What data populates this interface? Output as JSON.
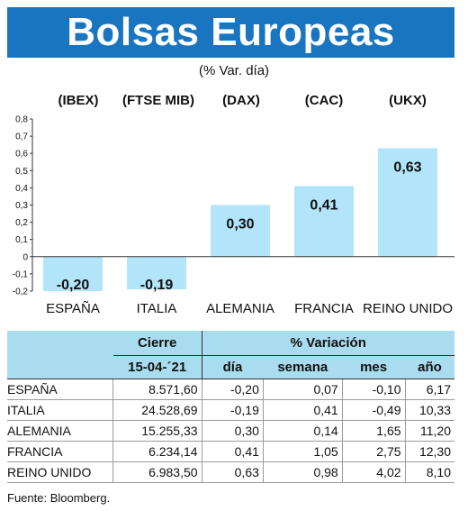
{
  "title": "Bolsas Europeas",
  "subtitle": "(% Var. día)",
  "chart_data": {
    "type": "bar",
    "categories": [
      "ESPAÑA",
      "ITALIA",
      "ALEMANIA",
      "FRANCIA",
      "REINO UNIDO"
    ],
    "indices": [
      "(IBEX)",
      "(FTSE MIB)",
      "(DAX)",
      "(CAC)",
      "(UKX)"
    ],
    "values": [
      -0.2,
      -0.19,
      0.3,
      0.41,
      0.63
    ],
    "data_labels": [
      "-0,20",
      "-0,19",
      "0,30",
      "0,41",
      "0,63"
    ],
    "y_ticks": [
      "0,8",
      "0,7",
      "0,6",
      "0,5",
      "0,4",
      "0,3",
      "0,2",
      "0,1",
      "0",
      "-0,1",
      "-0,2"
    ],
    "ylim": [
      -0.2,
      0.8
    ],
    "bar_color": "#b3e5fa",
    "grid": false
  },
  "table": {
    "header_cierre": "Cierre",
    "header_variacion": "% Variación",
    "date": "15-04-´21",
    "cols": [
      "día",
      "semana",
      "mes",
      "año"
    ],
    "rows": [
      {
        "name": "ESPAÑA",
        "cierre": "8.571,60",
        "dia": "-0,20",
        "semana": "0,07",
        "mes": "-0,10",
        "ano": "6,17"
      },
      {
        "name": "ITALIA",
        "cierre": "24.528,69",
        "dia": "-0,19",
        "semana": "0,41",
        "mes": "-0,49",
        "ano": "10,33"
      },
      {
        "name": "ALEMANIA",
        "cierre": "15.255,33",
        "dia": "0,30",
        "semana": "0,14",
        "mes": "1,65",
        "ano": "11,20"
      },
      {
        "name": "FRANCIA",
        "cierre": "6.234,14",
        "dia": "0,41",
        "semana": "1,05",
        "mes": "2,75",
        "ano": "12,30"
      },
      {
        "name": "REINO UNIDO",
        "cierre": "6.983,50",
        "dia": "0,63",
        "semana": "0,98",
        "mes": "4,02",
        "ano": "8,10"
      }
    ]
  },
  "source": "Fuente: Bloomberg.",
  "colors": {
    "header_bg": "#1a75c1",
    "table_header_bg": "#a9dcef"
  }
}
